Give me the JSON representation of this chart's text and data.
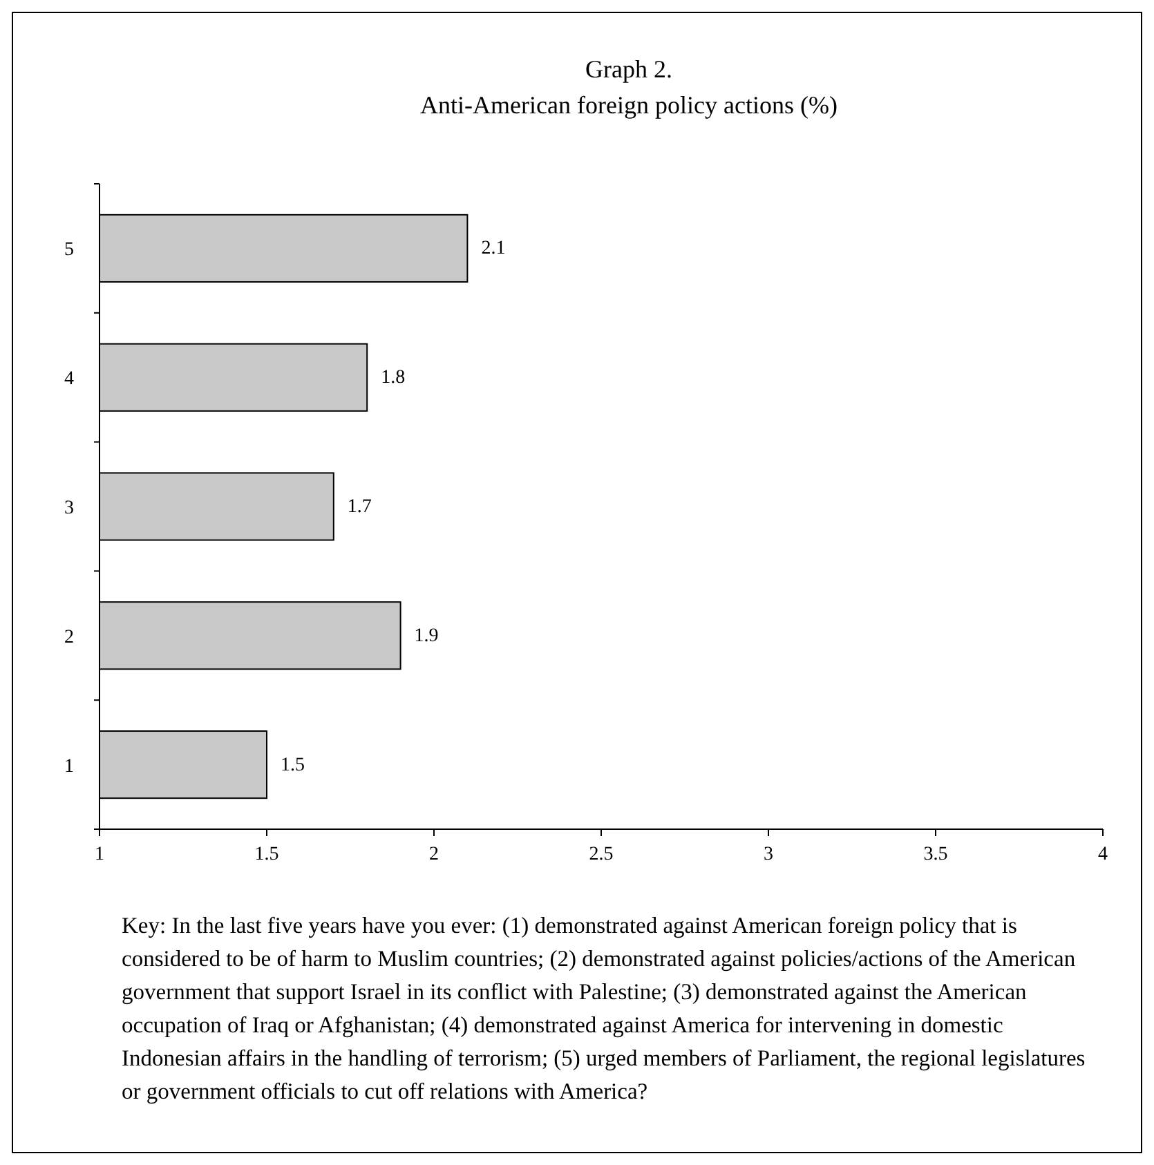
{
  "chart_data": {
    "type": "bar",
    "orientation": "horizontal",
    "title": "Graph 2.",
    "subtitle": "Anti-American foreign policy actions (%)",
    "categories": [
      "5",
      "4",
      "3",
      "2",
      "1"
    ],
    "values": [
      2.1,
      1.8,
      1.7,
      1.9,
      1.5
    ],
    "data_labels": true,
    "color": "#c8c8c8",
    "xlim": [
      1,
      4
    ],
    "xticks": [
      1,
      1.5,
      2,
      2.5,
      3,
      3.5,
      4
    ],
    "annotations": [
      "Key: In the last five years have you ever: (1) demonstrated against American foreign policy that is considered to be of harm to Muslim countries; (2) demonstrated against policies/actions of the American government that support Israel in its conflict with Palestine; (3) demonstrated against the American occupation of Iraq or Afghanistan; (4) demonstrated against America for intervening in domestic Indonesian affairs in the handling of terrorism; (5) urged members of Parliament, the regional legislatures or government officials to cut off relations with America?"
    ]
  }
}
